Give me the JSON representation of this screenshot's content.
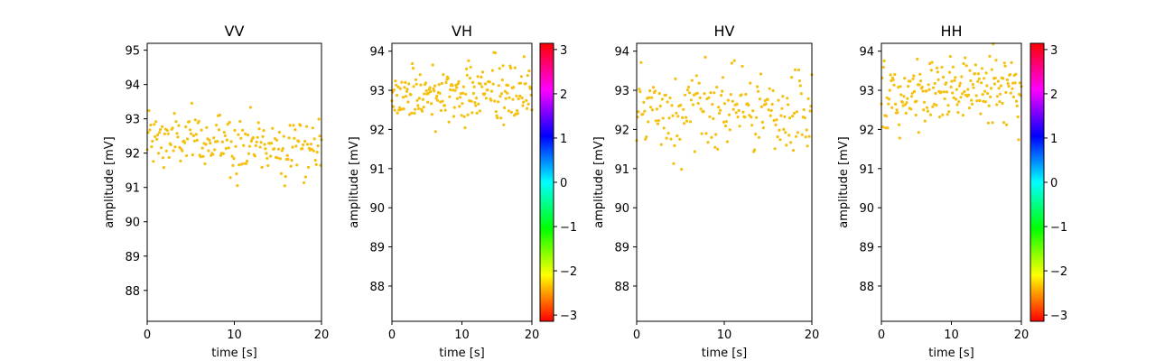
{
  "chart_data": [
    {
      "type": "scatter",
      "title": "VV",
      "xlabel": "time [s]",
      "ylabel": "amplitude [mV]",
      "xlim": [
        0,
        20
      ],
      "ylim": [
        87.1,
        95.2
      ],
      "xticks": [
        0,
        10,
        20
      ],
      "yticks": [
        88,
        89,
        90,
        91,
        92,
        93,
        94,
        95
      ],
      "point_color": "#f5c010",
      "mean": 92.3,
      "spread": 0.45,
      "trend": -0.01,
      "colorbar": null
    },
    {
      "type": "scatter",
      "title": "VH",
      "xlabel": "time [s]",
      "ylabel": "amplitude [mV]",
      "xlim": [
        0,
        20
      ],
      "ylim": [
        87.1,
        94.2
      ],
      "xticks": [
        0,
        10,
        20
      ],
      "yticks": [
        88,
        89,
        90,
        91,
        92,
        93,
        94
      ],
      "point_color": "#f5c010",
      "mean": 92.9,
      "spread": 0.4,
      "trend": 0.0,
      "colorbar": {
        "range": [
          -3.14,
          3.14
        ],
        "ticks": [
          -3,
          -2,
          -1,
          0,
          1,
          2,
          3
        ],
        "colormap": "hsv"
      }
    },
    {
      "type": "scatter",
      "title": "HV",
      "xlabel": "time [s]",
      "ylabel": "amplitude [mV]",
      "xlim": [
        0,
        20
      ],
      "ylim": [
        87.1,
        94.2
      ],
      "xticks": [
        0,
        10,
        20
      ],
      "yticks": [
        88,
        89,
        90,
        91,
        92,
        93,
        94
      ],
      "point_color": "#f5c010",
      "mean": 92.4,
      "spread": 0.5,
      "trend": 0.0,
      "colorbar": null
    },
    {
      "type": "scatter",
      "title": "HH",
      "xlabel": "time [s]",
      "ylabel": "amplitude [mV]",
      "xlim": [
        0,
        20
      ],
      "ylim": [
        87.1,
        94.2
      ],
      "xticks": [
        0,
        10,
        20
      ],
      "yticks": [
        88,
        89,
        90,
        91,
        92,
        93,
        94
      ],
      "point_color": "#f5c010",
      "mean": 92.95,
      "spread": 0.45,
      "trend": 0.02,
      "colorbar": {
        "range": [
          -3.14,
          3.14
        ],
        "ticks": [
          -3,
          -2,
          -1,
          0,
          1,
          2,
          3
        ],
        "colormap": "hsv"
      }
    }
  ]
}
